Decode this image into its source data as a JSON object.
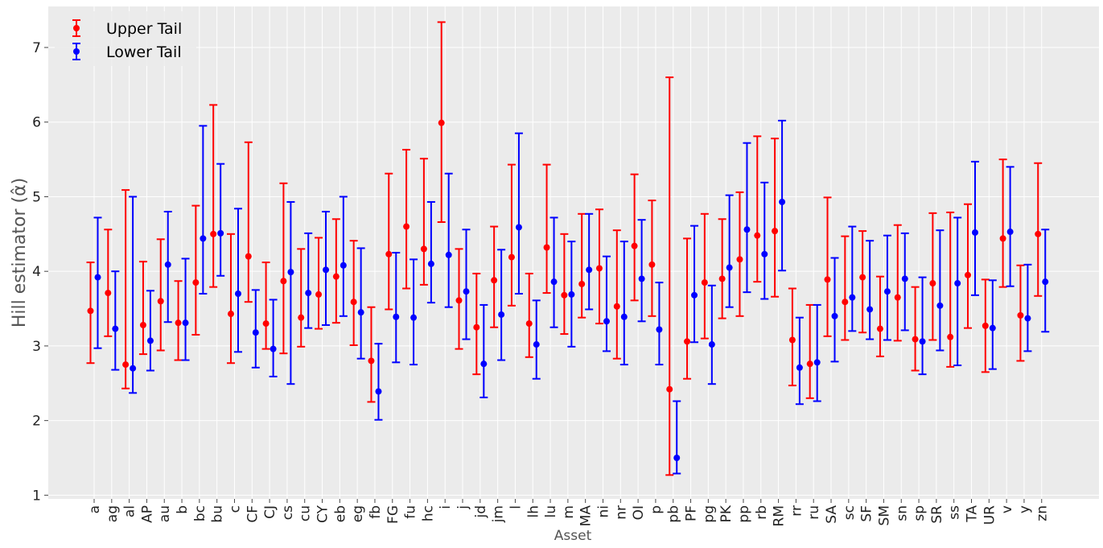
{
  "chart_data": {
    "type": "scatter",
    "xlabel": "Asset",
    "ylabel": "Hill estimator (α̂)",
    "ylim": [
      0.95,
      7.55
    ],
    "yticks": [
      1,
      2,
      3,
      4,
      5,
      6,
      7
    ],
    "grid": true,
    "legend_position": "top-left",
    "categories": [
      "a",
      "ag",
      "al",
      "AP",
      "au",
      "b",
      "bc",
      "bu",
      "c",
      "CF",
      "CJ",
      "cs",
      "cu",
      "CY",
      "eb",
      "eg",
      "fb",
      "FG",
      "fu",
      "hc",
      "i",
      "j",
      "jd",
      "jm",
      "l",
      "lh",
      "lu",
      "m",
      "MA",
      "ni",
      "nr",
      "OI",
      "p",
      "pb",
      "PF",
      "pg",
      "PK",
      "pp",
      "rb",
      "RM",
      "rr",
      "ru",
      "SA",
      "sc",
      "SF",
      "SM",
      "sn",
      "sp",
      "SR",
      "ss",
      "TA",
      "UR",
      "v",
      "y",
      "zn"
    ],
    "series": [
      {
        "name": "Upper Tail",
        "color": "#ff0000",
        "values": [
          3.47,
          3.71,
          2.75,
          3.28,
          3.6,
          3.31,
          3.85,
          4.5,
          3.43,
          4.2,
          3.3,
          3.87,
          3.38,
          3.69,
          3.93,
          3.59,
          2.8,
          4.23,
          4.6,
          4.3,
          5.99,
          3.61,
          3.25,
          3.88,
          4.19,
          3.3,
          4.32,
          3.68,
          3.83,
          4.04,
          3.53,
          4.34,
          4.09,
          2.42,
          3.06,
          3.85,
          3.9,
          4.16,
          4.48,
          4.54,
          3.08,
          2.76,
          3.89,
          3.59,
          3.92,
          3.23,
          3.65,
          3.09,
          3.84,
          3.12,
          3.95,
          3.27,
          4.44,
          3.41,
          4.5
        ],
        "lower": [
          2.77,
          3.13,
          2.43,
          2.89,
          2.94,
          2.81,
          3.15,
          3.79,
          2.77,
          3.59,
          2.96,
          2.9,
          2.99,
          3.23,
          3.31,
          3.01,
          2.25,
          3.49,
          3.77,
          3.82,
          4.66,
          2.96,
          2.62,
          3.25,
          3.54,
          2.85,
          3.71,
          3.16,
          3.38,
          3.3,
          2.83,
          3.61,
          3.4,
          1.27,
          2.56,
          3.1,
          3.37,
          3.4,
          3.86,
          3.66,
          2.47,
          2.3,
          3.13,
          3.08,
          3.18,
          2.86,
          3.07,
          2.67,
          3.08,
          2.72,
          3.24,
          2.65,
          3.79,
          2.8,
          3.67
        ],
        "upper": [
          4.12,
          4.56,
          5.09,
          4.13,
          4.43,
          3.87,
          4.88,
          6.23,
          4.5,
          5.73,
          4.12,
          5.18,
          4.3,
          4.45,
          4.7,
          4.41,
          3.52,
          5.31,
          5.63,
          5.51,
          7.34,
          4.3,
          3.97,
          4.6,
          5.43,
          3.97,
          5.43,
          4.5,
          4.77,
          4.83,
          4.55,
          5.3,
          4.95,
          6.6,
          4.44,
          4.77,
          4.7,
          5.06,
          5.81,
          5.78,
          3.77,
          3.55,
          4.99,
          4.47,
          4.54,
          3.93,
          4.62,
          3.79,
          4.78,
          4.79,
          4.9,
          3.89,
          5.5,
          4.08,
          5.45
        ]
      },
      {
        "name": "Lower Tail",
        "color": "#0000ff",
        "values": [
          3.92,
          3.23,
          2.7,
          3.07,
          4.09,
          3.31,
          4.44,
          4.51,
          3.7,
          3.18,
          2.96,
          3.99,
          3.71,
          4.02,
          4.08,
          3.45,
          2.39,
          3.39,
          3.38,
          4.1,
          4.22,
          3.73,
          2.76,
          3.42,
          4.59,
          3.02,
          3.86,
          3.69,
          4.02,
          3.33,
          3.39,
          3.9,
          3.22,
          1.5,
          3.68,
          3.02,
          4.05,
          4.56,
          4.23,
          4.93,
          2.71,
          2.78,
          3.4,
          3.65,
          3.49,
          3.73,
          3.9,
          3.06,
          3.54,
          3.84,
          4.52,
          3.24,
          4.53,
          3.37,
          3.86
        ],
        "lower": [
          2.97,
          2.68,
          2.37,
          2.67,
          3.32,
          2.81,
          3.7,
          3.94,
          2.92,
          2.71,
          2.59,
          2.49,
          3.24,
          3.28,
          3.4,
          2.83,
          2.01,
          2.78,
          2.75,
          3.58,
          3.52,
          3.09,
          2.31,
          2.81,
          3.7,
          2.56,
          3.25,
          2.99,
          3.49,
          2.93,
          2.75,
          3.33,
          2.75,
          1.29,
          3.05,
          2.49,
          3.52,
          3.72,
          3.63,
          4.01,
          2.22,
          2.26,
          2.79,
          3.2,
          3.09,
          3.08,
          3.21,
          2.62,
          2.94,
          2.74,
          3.68,
          2.69,
          3.8,
          2.93,
          3.19
        ],
        "upper": [
          4.72,
          4.0,
          5.0,
          3.74,
          4.8,
          4.17,
          5.95,
          5.44,
          4.84,
          3.75,
          3.62,
          4.93,
          4.51,
          4.8,
          5.0,
          4.31,
          3.03,
          4.25,
          4.16,
          4.93,
          5.31,
          4.56,
          3.55,
          4.29,
          5.85,
          3.61,
          4.72,
          4.4,
          4.77,
          4.2,
          4.4,
          4.69,
          3.85,
          2.26,
          4.61,
          3.81,
          5.02,
          5.72,
          5.19,
          6.02,
          3.38,
          3.55,
          4.18,
          4.6,
          4.41,
          4.48,
          4.51,
          3.92,
          4.55,
          4.72,
          5.47,
          3.88,
          5.4,
          4.09,
          4.56
        ]
      }
    ]
  }
}
